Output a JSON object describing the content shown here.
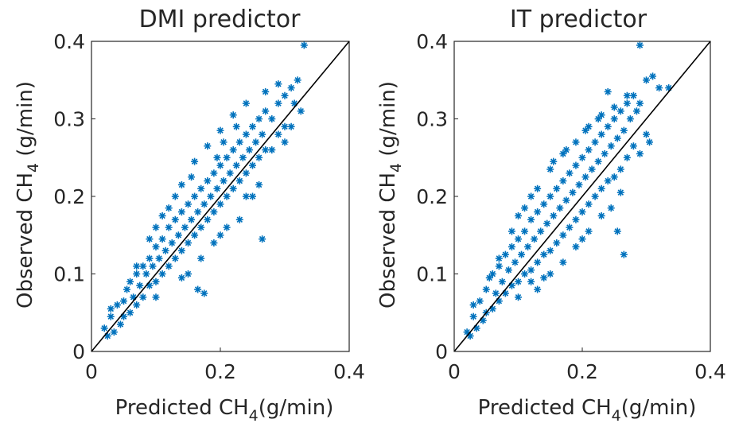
{
  "chart_data": [
    {
      "type": "scatter",
      "title": "DMI predictor",
      "xlabel": {
        "main": "Predicted CH",
        "sub": "4",
        "unit": "(g/min)"
      },
      "ylabel": {
        "main": "Observed CH",
        "sub": "4",
        "unit": " (g/min)"
      },
      "xlim": [
        0,
        0.4
      ],
      "ylim": [
        0,
        0.4
      ],
      "xticks": [
        "0",
        "0.2",
        "0.4"
      ],
      "yticks": [
        "0",
        "0.1",
        "0.2",
        "0.3",
        "0.4"
      ],
      "marker": "asterisk",
      "marker_color": "#0072BD",
      "reference_line": {
        "type": "identity",
        "color": "#000000"
      },
      "grid": false,
      "series": [
        {
          "values": [
            [
              0.02,
              0.03
            ],
            [
              0.025,
              0.02
            ],
            [
              0.03,
              0.045
            ],
            [
              0.03,
              0.055
            ],
            [
              0.035,
              0.025
            ],
            [
              0.04,
              0.06
            ],
            [
              0.045,
              0.035
            ],
            [
              0.05,
              0.065
            ],
            [
              0.05,
              0.045
            ],
            [
              0.055,
              0.08
            ],
            [
              0.06,
              0.05
            ],
            [
              0.06,
              0.09
            ],
            [
              0.065,
              0.07
            ],
            [
              0.07,
              0.1
            ],
            [
              0.07,
              0.06
            ],
            [
              0.075,
              0.085
            ],
            [
              0.08,
              0.11
            ],
            [
              0.08,
              0.07
            ],
            [
              0.085,
              0.1
            ],
            [
              0.09,
              0.12
            ],
            [
              0.09,
              0.085
            ],
            [
              0.095,
              0.11
            ],
            [
              0.1,
              0.135
            ],
            [
              0.1,
              0.09
            ],
            [
              0.105,
              0.12
            ],
            [
              0.11,
              0.145
            ],
            [
              0.11,
              0.1
            ],
            [
              0.115,
              0.13
            ],
            [
              0.12,
              0.16
            ],
            [
              0.12,
              0.11
            ],
            [
              0.125,
              0.14
            ],
            [
              0.13,
              0.17
            ],
            [
              0.13,
              0.12
            ],
            [
              0.135,
              0.15
            ],
            [
              0.14,
              0.18
            ],
            [
              0.14,
              0.13
            ],
            [
              0.145,
              0.16
            ],
            [
              0.15,
              0.19
            ],
            [
              0.15,
              0.14
            ],
            [
              0.155,
              0.17
            ],
            [
              0.16,
              0.2
            ],
            [
              0.16,
              0.15
            ],
            [
              0.165,
              0.18
            ],
            [
              0.17,
              0.21
            ],
            [
              0.17,
              0.16
            ],
            [
              0.175,
              0.19
            ],
            [
              0.18,
              0.22
            ],
            [
              0.18,
              0.17
            ],
            [
              0.185,
              0.2
            ],
            [
              0.19,
              0.23
            ],
            [
              0.19,
              0.18
            ],
            [
              0.195,
              0.21
            ],
            [
              0.2,
              0.24
            ],
            [
              0.2,
              0.19
            ],
            [
              0.205,
              0.22
            ],
            [
              0.21,
              0.25
            ],
            [
              0.21,
              0.2
            ],
            [
              0.215,
              0.23
            ],
            [
              0.22,
              0.26
            ],
            [
              0.22,
              0.21
            ],
            [
              0.225,
              0.24
            ],
            [
              0.23,
              0.27
            ],
            [
              0.23,
              0.22
            ],
            [
              0.235,
              0.25
            ],
            [
              0.24,
              0.28
            ],
            [
              0.24,
              0.23
            ],
            [
              0.245,
              0.26
            ],
            [
              0.25,
              0.29
            ],
            [
              0.25,
              0.24
            ],
            [
              0.255,
              0.27
            ],
            [
              0.26,
              0.3
            ],
            [
              0.26,
              0.25
            ],
            [
              0.265,
              0.28
            ],
            [
              0.27,
              0.31
            ],
            [
              0.27,
              0.26
            ],
            [
              0.28,
              0.3
            ],
            [
              0.29,
              0.32
            ],
            [
              0.29,
              0.28
            ],
            [
              0.3,
              0.33
            ],
            [
              0.3,
              0.29
            ],
            [
              0.31,
              0.34
            ],
            [
              0.315,
              0.32
            ],
            [
              0.32,
              0.35
            ],
            [
              0.325,
              0.31
            ],
            [
              0.33,
              0.395
            ],
            [
              0.31,
              0.29
            ],
            [
              0.3,
              0.27
            ],
            [
              0.28,
              0.26
            ],
            [
              0.07,
              0.11
            ],
            [
              0.09,
              0.145
            ],
            [
              0.1,
              0.16
            ],
            [
              0.12,
              0.185
            ],
            [
              0.14,
              0.215
            ],
            [
              0.16,
              0.245
            ],
            [
              0.18,
              0.265
            ],
            [
              0.2,
              0.285
            ],
            [
              0.22,
              0.305
            ],
            [
              0.24,
              0.32
            ],
            [
              0.27,
              0.335
            ],
            [
              0.29,
              0.345
            ],
            [
              0.15,
              0.1
            ],
            [
              0.17,
              0.12
            ],
            [
              0.19,
              0.14
            ],
            [
              0.21,
              0.16
            ],
            [
              0.23,
              0.17
            ],
            [
              0.25,
              0.2
            ],
            [
              0.265,
              0.145
            ],
            [
              0.175,
              0.075
            ],
            [
              0.165,
              0.08
            ],
            [
              0.1,
              0.07
            ],
            [
              0.14,
              0.095
            ],
            [
              0.2,
              0.15
            ],
            [
              0.26,
              0.215
            ],
            [
              0.24,
              0.2
            ],
            [
              0.195,
              0.25
            ],
            [
              0.13,
              0.2
            ],
            [
              0.11,
              0.175
            ],
            [
              0.155,
              0.225
            ],
            [
              0.205,
              0.27
            ],
            [
              0.225,
              0.29
            ]
          ]
        }
      ]
    },
    {
      "type": "scatter",
      "title": "IT predictor",
      "xlabel": {
        "main": "Predicted CH",
        "sub": "4",
        "unit": "(g/min)"
      },
      "ylabel": {
        "main": "Observed CH",
        "sub": "4",
        "unit": " (g/min)"
      },
      "xlim": [
        0,
        0.4
      ],
      "ylim": [
        0,
        0.4
      ],
      "xticks": [
        "0",
        "0.2",
        "0.4"
      ],
      "yticks": [
        "0",
        "0.1",
        "0.2",
        "0.3",
        "0.4"
      ],
      "marker": "asterisk",
      "marker_color": "#0072BD",
      "reference_line": {
        "type": "identity",
        "color": "#000000"
      },
      "grid": false,
      "series": [
        {
          "values": [
            [
              0.02,
              0.025
            ],
            [
              0.025,
              0.02
            ],
            [
              0.03,
              0.045
            ],
            [
              0.03,
              0.06
            ],
            [
              0.035,
              0.03
            ],
            [
              0.04,
              0.065
            ],
            [
              0.045,
              0.04
            ],
            [
              0.05,
              0.08
            ],
            [
              0.05,
              0.05
            ],
            [
              0.055,
              0.095
            ],
            [
              0.06,
              0.055
            ],
            [
              0.06,
              0.1
            ],
            [
              0.065,
              0.075
            ],
            [
              0.07,
              0.11
            ],
            [
              0.07,
              0.065
            ],
            [
              0.075,
              0.09
            ],
            [
              0.08,
              0.125
            ],
            [
              0.08,
              0.075
            ],
            [
              0.085,
              0.105
            ],
            [
              0.09,
              0.135
            ],
            [
              0.09,
              0.085
            ],
            [
              0.095,
              0.115
            ],
            [
              0.1,
              0.145
            ],
            [
              0.1,
              0.09
            ],
            [
              0.105,
              0.125
            ],
            [
              0.11,
              0.155
            ],
            [
              0.11,
              0.1
            ],
            [
              0.115,
              0.135
            ],
            [
              0.12,
              0.17
            ],
            [
              0.12,
              0.105
            ],
            [
              0.125,
              0.145
            ],
            [
              0.13,
              0.18
            ],
            [
              0.13,
              0.115
            ],
            [
              0.135,
              0.155
            ],
            [
              0.14,
              0.19
            ],
            [
              0.14,
              0.125
            ],
            [
              0.145,
              0.165
            ],
            [
              0.15,
              0.2
            ],
            [
              0.15,
              0.13
            ],
            [
              0.155,
              0.175
            ],
            [
              0.16,
              0.21
            ],
            [
              0.16,
              0.14
            ],
            [
              0.165,
              0.185
            ],
            [
              0.17,
              0.22
            ],
            [
              0.17,
              0.15
            ],
            [
              0.175,
              0.195
            ],
            [
              0.18,
              0.23
            ],
            [
              0.18,
              0.16
            ],
            [
              0.185,
              0.205
            ],
            [
              0.19,
              0.24
            ],
            [
              0.19,
              0.17
            ],
            [
              0.195,
              0.215
            ],
            [
              0.2,
              0.25
            ],
            [
              0.2,
              0.18
            ],
            [
              0.205,
              0.225
            ],
            [
              0.21,
              0.26
            ],
            [
              0.21,
              0.19
            ],
            [
              0.215,
              0.235
            ],
            [
              0.22,
              0.27
            ],
            [
              0.22,
              0.2
            ],
            [
              0.225,
              0.245
            ],
            [
              0.23,
              0.28
            ],
            [
              0.23,
              0.21
            ],
            [
              0.235,
              0.255
            ],
            [
              0.24,
              0.29
            ],
            [
              0.24,
              0.22
            ],
            [
              0.245,
              0.265
            ],
            [
              0.25,
              0.3
            ],
            [
              0.25,
              0.225
            ],
            [
              0.255,
              0.275
            ],
            [
              0.26,
              0.31
            ],
            [
              0.26,
              0.235
            ],
            [
              0.265,
              0.285
            ],
            [
              0.27,
              0.32
            ],
            [
              0.27,
              0.25
            ],
            [
              0.275,
              0.3
            ],
            [
              0.28,
              0.33
            ],
            [
              0.28,
              0.265
            ],
            [
              0.285,
              0.31
            ],
            [
              0.29,
              0.32
            ],
            [
              0.3,
              0.35
            ],
            [
              0.31,
              0.355
            ],
            [
              0.32,
              0.34
            ],
            [
              0.335,
              0.34
            ],
            [
              0.29,
              0.395
            ],
            [
              0.3,
              0.28
            ],
            [
              0.305,
              0.27
            ],
            [
              0.29,
              0.255
            ],
            [
              0.07,
              0.12
            ],
            [
              0.09,
              0.155
            ],
            [
              0.11,
              0.185
            ],
            [
              0.13,
              0.21
            ],
            [
              0.15,
              0.235
            ],
            [
              0.17,
              0.255
            ],
            [
              0.19,
              0.27
            ],
            [
              0.21,
              0.29
            ],
            [
              0.23,
              0.305
            ],
            [
              0.25,
              0.315
            ],
            [
              0.27,
              0.33
            ],
            [
              0.24,
              0.335
            ],
            [
              0.13,
              0.08
            ],
            [
              0.15,
              0.1
            ],
            [
              0.17,
              0.115
            ],
            [
              0.19,
              0.135
            ],
            [
              0.21,
              0.155
            ],
            [
              0.23,
              0.175
            ],
            [
              0.265,
              0.125
            ],
            [
              0.255,
              0.155
            ],
            [
              0.12,
              0.09
            ],
            [
              0.2,
              0.145
            ],
            [
              0.14,
              0.095
            ],
            [
              0.1,
              0.07
            ],
            [
              0.245,
              0.185
            ],
            [
              0.26,
              0.205
            ],
            [
              0.175,
              0.26
            ],
            [
              0.12,
              0.2
            ],
            [
              0.1,
              0.175
            ],
            [
              0.155,
              0.245
            ],
            [
              0.205,
              0.285
            ],
            [
              0.225,
              0.3
            ]
          ]
        }
      ]
    }
  ]
}
